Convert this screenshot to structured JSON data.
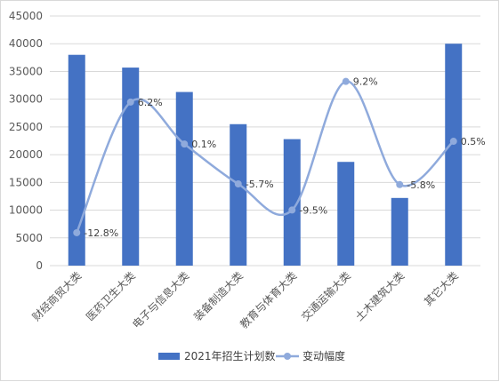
{
  "chart_data": {
    "type": "bar",
    "categories": [
      "财经商贸大类",
      "医药卫生大类",
      "电子与信息大类",
      "装备制造大类",
      "教育与体育大类",
      "交通运输大类",
      "土木建筑大类",
      "其它大类"
    ],
    "series": [
      {
        "name": "2021年招生计划数",
        "type": "bar",
        "axis": "left",
        "values": [
          38000,
          35700,
          31300,
          25500,
          22800,
          18700,
          12200,
          40000
        ]
      },
      {
        "name": "变动幅度",
        "type": "line",
        "axis": "right",
        "smooth": true,
        "values": [
          -12.8,
          6.2,
          0.1,
          -5.7,
          -9.5,
          9.2,
          -5.8,
          0.5
        ],
        "labels": [
          "-12.8%",
          "6.2%",
          "0.1%",
          "-5.7%",
          "-9.5%",
          "9.2%",
          "-5.8%",
          "0.5%"
        ]
      }
    ],
    "y_ticks": [
      "0",
      "5000",
      "10000",
      "15000",
      "20000",
      "25000",
      "30000",
      "35000",
      "40000",
      "45000"
    ],
    "ylim": [
      0,
      45000
    ],
    "grid": true,
    "legend_position": "bottom",
    "colors": {
      "bar": "#4472c4",
      "line": "#8faadc",
      "grid": "#d9d9d9",
      "axis_text": "#595959"
    }
  }
}
